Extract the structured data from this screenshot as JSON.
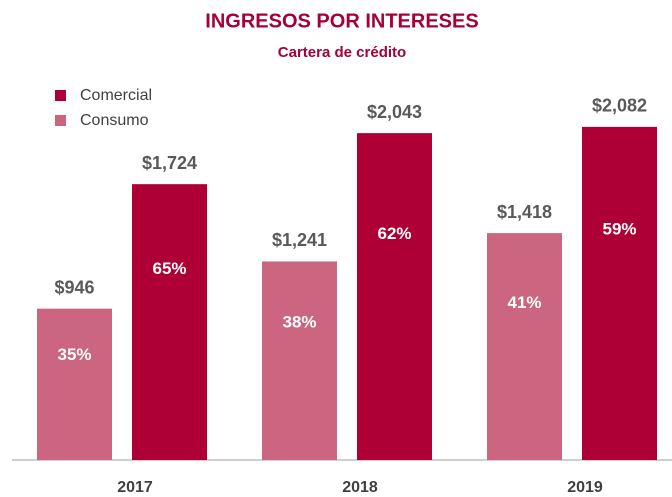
{
  "chart_data": {
    "type": "bar",
    "title": "INGRESOS POR INTERESES",
    "subtitle": "Cartera de crédito",
    "categories": [
      "2017",
      "2018",
      "2019"
    ],
    "series": [
      {
        "name": "Consumo",
        "color": "#cc6680",
        "values": [
          946,
          1241,
          1418
        ],
        "value_labels": [
          "$946",
          "$1,241",
          "$1,418"
        ],
        "share_labels": [
          "35%",
          "38%",
          "41%"
        ]
      },
      {
        "name": "Comercial",
        "color": "#ae0036",
        "values": [
          1724,
          2043,
          2082
        ],
        "value_labels": [
          "$1,724",
          "$2,043",
          "$2,082"
        ],
        "share_labels": [
          "65%",
          "62%",
          "59%"
        ]
      }
    ],
    "ylim": [
      0,
      2200
    ],
    "legend": "top-left"
  }
}
